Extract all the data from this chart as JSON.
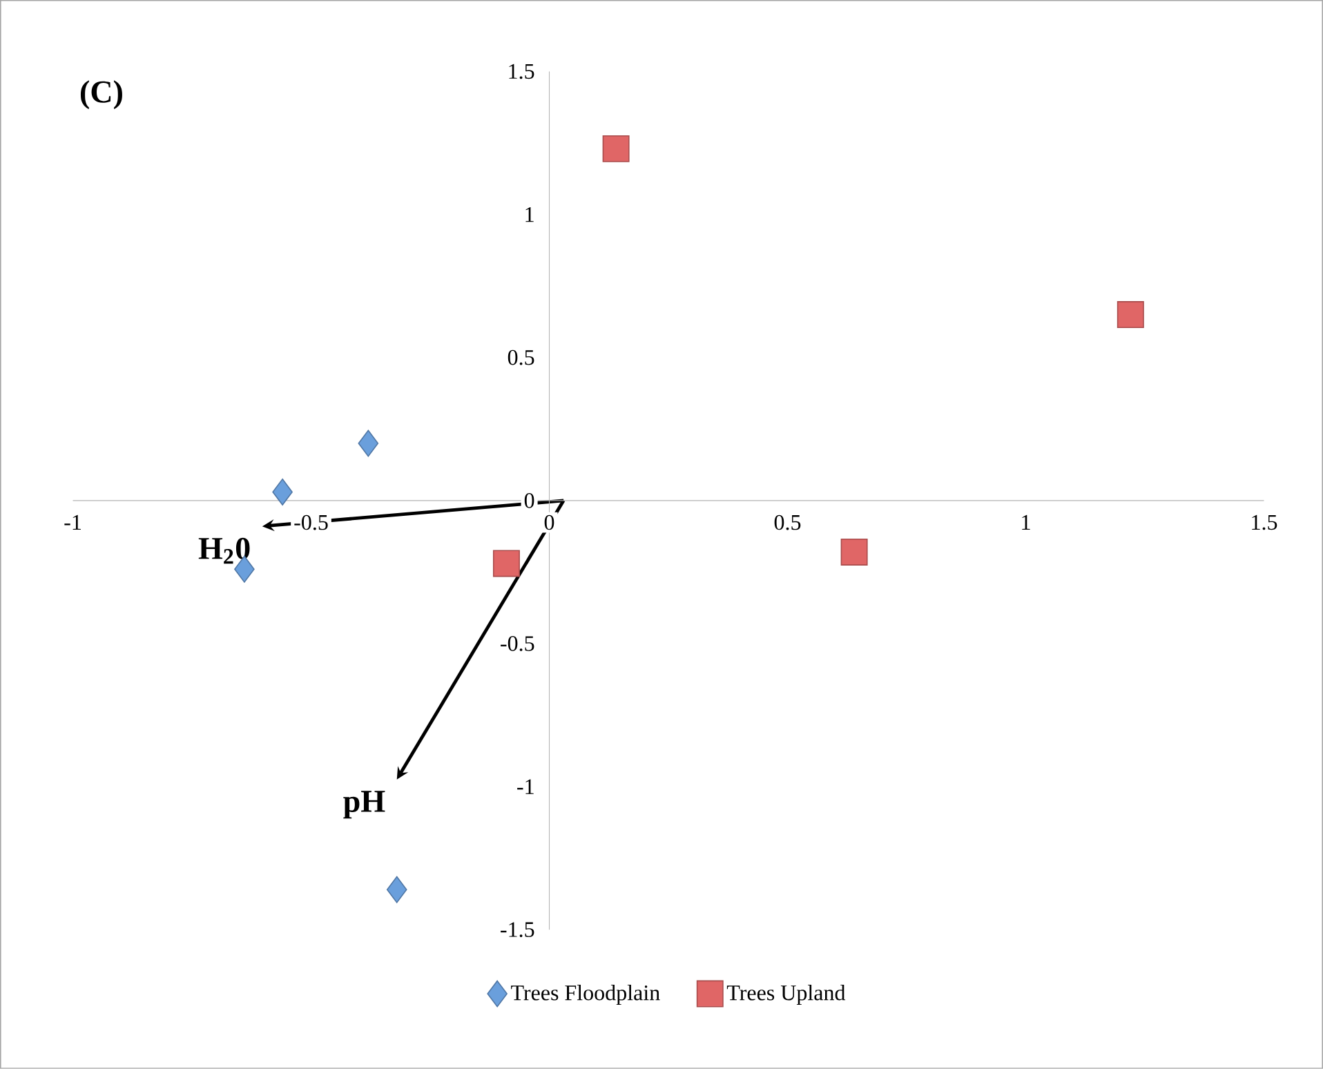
{
  "chart_data": {
    "type": "scatter",
    "title": "(C)",
    "xlim": [
      -1,
      1.5
    ],
    "xticks": [
      -1,
      -0.5,
      0,
      0.5,
      1,
      1.5
    ],
    "ylim": [
      -1.5,
      1.5
    ],
    "yticks": [
      -1.5,
      -1,
      -0.5,
      0,
      0.5,
      1,
      1.5
    ],
    "grid": false,
    "legend": "bottom",
    "series": [
      {
        "name": "Trees Floodplain",
        "color": "#6a9fdc",
        "marker": "diamond",
        "x": [
          -0.38,
          -0.56,
          -0.64,
          -0.32
        ],
        "values": [
          0.2,
          0.03,
          -0.24,
          -1.36
        ]
      },
      {
        "name": "Trees Upland",
        "color": "#e06666",
        "marker": "square",
        "x": [
          0.14,
          1.22,
          0.64,
          -0.09
        ],
        "values": [
          1.23,
          0.65,
          -0.18,
          -0.22
        ]
      }
    ],
    "annotations": [
      "H$_{2}$0",
      "pH"
    ]
  }
}
